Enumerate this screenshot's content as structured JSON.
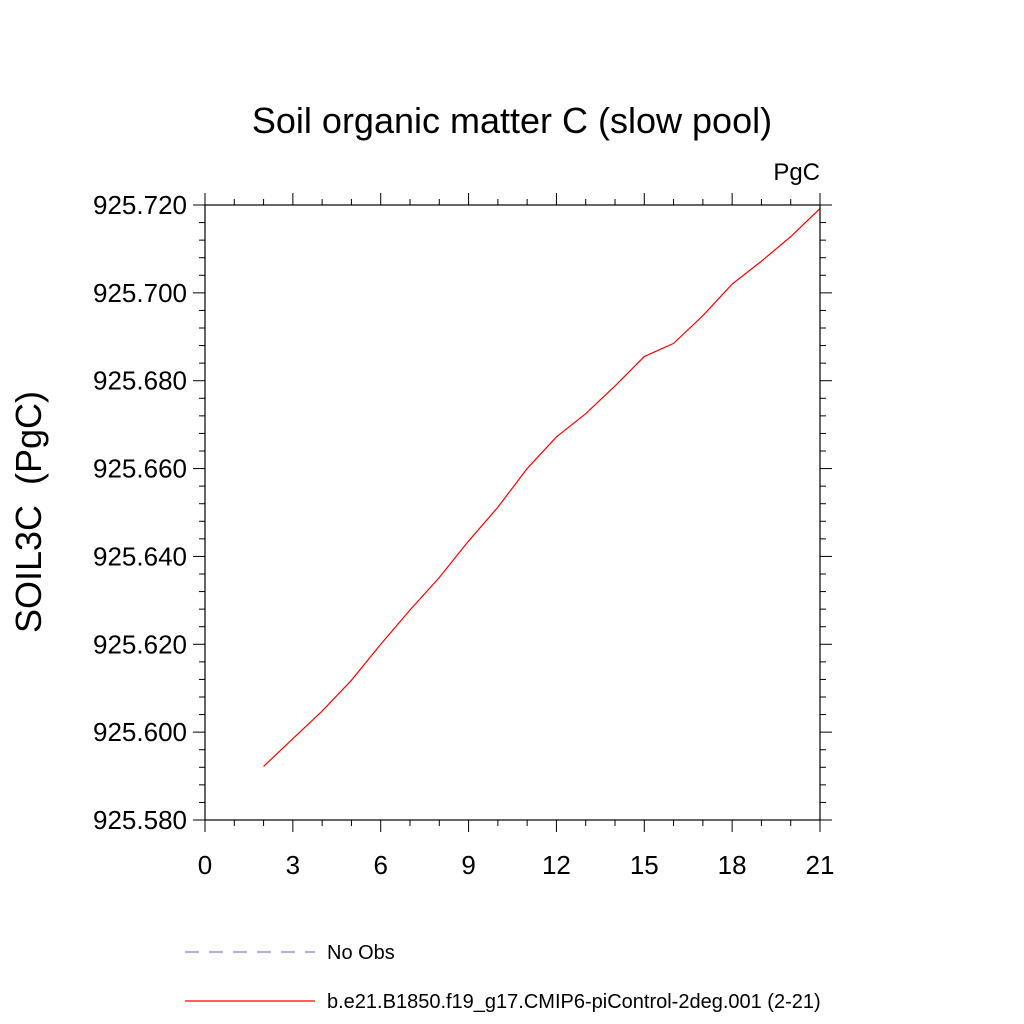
{
  "chart_data": {
    "type": "line",
    "title": "Soil organic matter C (slow pool)",
    "units_label": "PgC",
    "xlabel": "",
    "ylabel": "SOIL3C  (PgC)",
    "xlim": [
      0,
      21
    ],
    "ylim": [
      925.58,
      925.72
    ],
    "x_ticks": [
      "0",
      "3",
      "6",
      "9",
      "12",
      "15",
      "18",
      "21"
    ],
    "y_ticks": [
      "925.580",
      "925.600",
      "925.620",
      "925.640",
      "925.660",
      "925.680",
      "925.700",
      "925.720"
    ],
    "series": [
      {
        "name": "No Obs",
        "color": "#8080c0",
        "dash": "dashed",
        "x": [],
        "y": []
      },
      {
        "name": "b.e21.B1850.f19_g17.CMIP6-piControl-2deg.001 (2-21)",
        "color": "#ff0000",
        "dash": "solid",
        "x": [
          2,
          3,
          4,
          5,
          6,
          7,
          8,
          9,
          10,
          11,
          12,
          13,
          14,
          15,
          16,
          17,
          18,
          19,
          20,
          21
        ],
        "y": [
          925.5922,
          925.5985,
          925.6048,
          925.6118,
          925.62,
          925.6278,
          925.6352,
          925.6435,
          925.6512,
          925.66,
          925.6672,
          925.6725,
          925.6788,
          925.6855,
          925.6885,
          925.6948,
          925.702,
          925.7072,
          925.7128,
          925.7192
        ]
      }
    ],
    "grid": false,
    "legend_position": "bottom"
  }
}
